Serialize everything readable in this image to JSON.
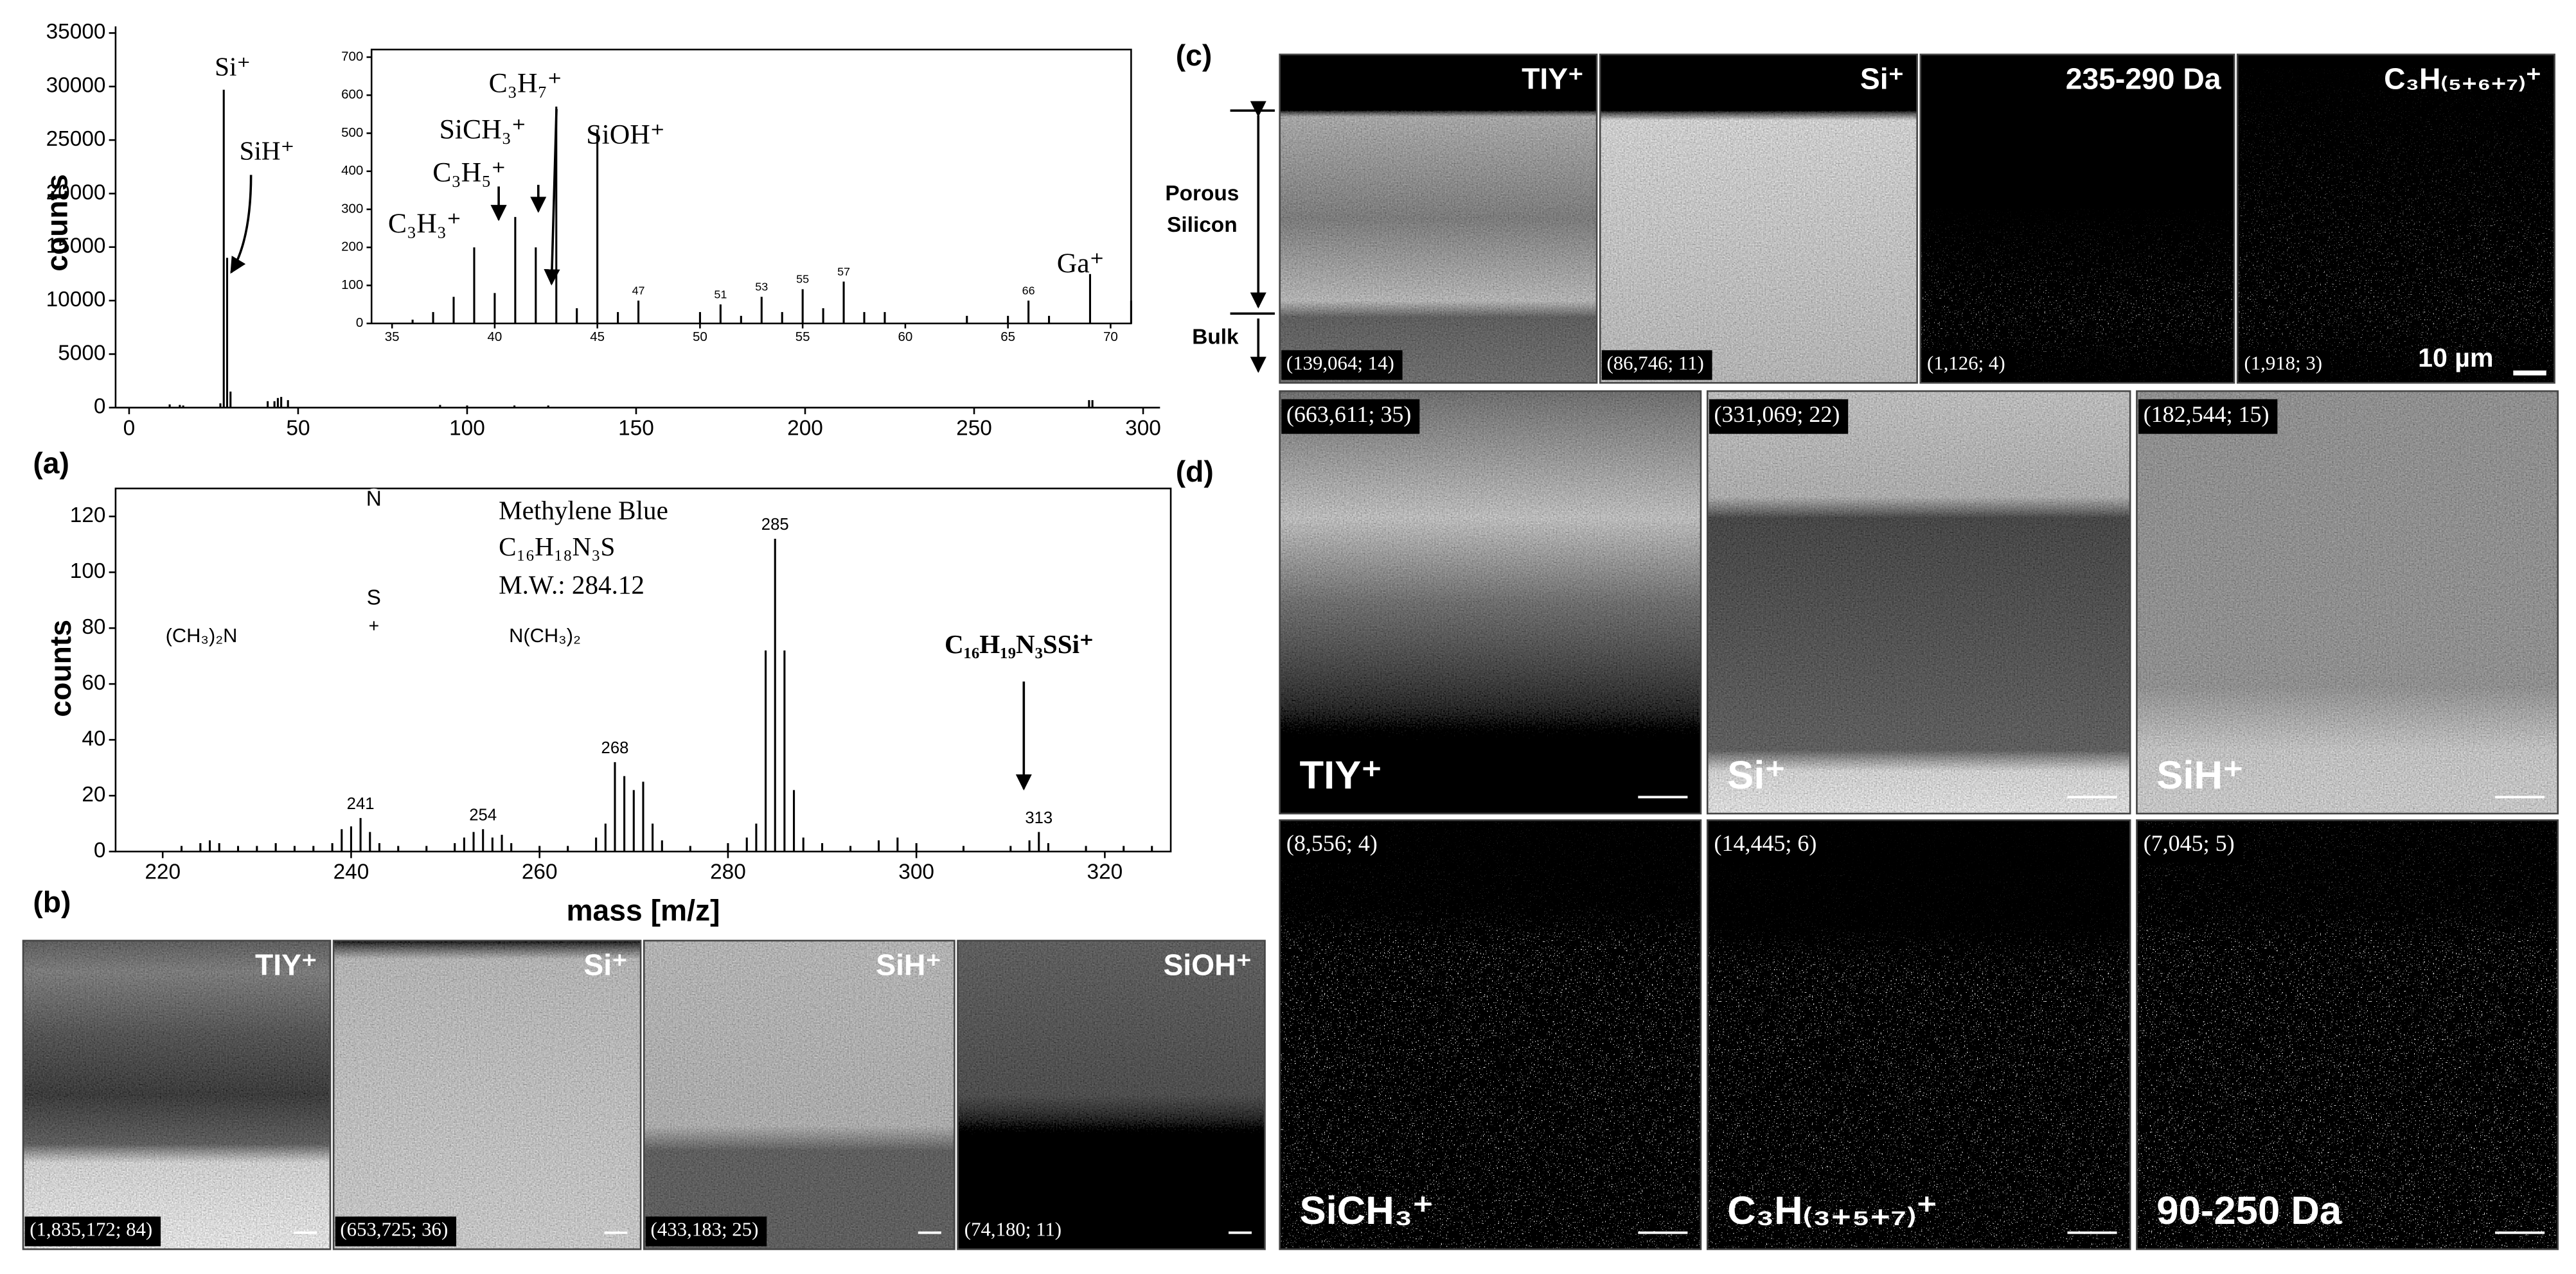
{
  "chart_data": [
    {
      "type": "stem",
      "y_label": "counts",
      "color": "#000000",
      "frame": false,
      "x": [
        12,
        15,
        16,
        27,
        28,
        29,
        30,
        41,
        43,
        44,
        45,
        47,
        92,
        100,
        114,
        124,
        284,
        285
      ],
      "values": [
        300,
        250,
        200,
        400,
        29700,
        14000,
        1500,
        600,
        600,
        900,
        1000,
        700,
        250,
        200,
        200,
        200,
        700,
        700
      ],
      "xlim": [
        -4,
        305
      ],
      "ylim": [
        0,
        35000
      ],
      "xticks": [
        0,
        50,
        100,
        150,
        200,
        250,
        300
      ],
      "yticks": [
        0,
        5000,
        10000,
        15000,
        20000,
        25000,
        30000,
        35000
      ],
      "annotations": [
        "Si⁺",
        "SiH⁺"
      ]
    },
    {
      "type": "stem",
      "color": "#000000",
      "frame": true,
      "x": [
        36,
        37,
        38,
        39,
        40,
        41,
        42,
        43,
        44,
        45,
        46,
        47,
        50,
        51,
        52,
        53,
        54,
        55,
        56,
        57,
        58,
        59,
        63,
        65,
        66,
        67,
        69,
        71
      ],
      "values": [
        10,
        30,
        70,
        200,
        80,
        280,
        200,
        570,
        40,
        510,
        30,
        60,
        30,
        50,
        20,
        70,
        30,
        90,
        40,
        110,
        30,
        30,
        20,
        20,
        60,
        20,
        130,
        60
      ],
      "xlim": [
        34,
        71
      ],
      "ylim": [
        0,
        720
      ],
      "xticks": [
        35,
        40,
        45,
        50,
        55,
        60,
        65,
        70
      ],
      "yticks": [
        0,
        100,
        200,
        300,
        400,
        500,
        600,
        700
      ],
      "labeled_peaks": [
        47,
        51,
        53,
        55,
        57,
        66
      ],
      "annotations": [
        "C₃H₃⁺",
        "C₃H₅⁺",
        "SiCH₃⁺",
        "C₃H₇⁺",
        "SiOH⁺",
        "Ga⁺"
      ]
    },
    {
      "type": "stem",
      "y_label": "counts",
      "x_label": "mass [m/z]",
      "color": "#000000",
      "frame": true,
      "x": [
        222,
        224,
        225,
        226,
        228,
        230,
        232,
        234,
        236,
        238,
        239,
        240,
        241,
        242,
        243,
        245,
        248,
        251,
        252,
        253,
        254,
        255,
        256,
        257,
        260,
        263,
        266,
        267,
        268,
        269,
        270,
        271,
        272,
        273,
        276,
        280,
        282,
        283,
        284,
        285,
        286,
        287,
        288,
        290,
        293,
        296,
        298,
        300,
        305,
        310,
        312,
        313,
        314,
        318,
        322,
        325
      ],
      "values": [
        2,
        3,
        4,
        3,
        2,
        2,
        3,
        2,
        2,
        3,
        8,
        9,
        12,
        7,
        3,
        2,
        2,
        3,
        5,
        7,
        8,
        5,
        6,
        3,
        2,
        2,
        5,
        10,
        32,
        27,
        22,
        25,
        10,
        4,
        2,
        3,
        5,
        10,
        72,
        112,
        72,
        22,
        5,
        3,
        2,
        4,
        5,
        3,
        2,
        2,
        4,
        7,
        3,
        2,
        2,
        2
      ],
      "xlim": [
        215,
        327
      ],
      "ylim": [
        0,
        130
      ],
      "xticks": [
        220,
        240,
        260,
        280,
        300,
        320
      ],
      "yticks": [
        0,
        20,
        40,
        60,
        80,
        100,
        120
      ],
      "labeled_peaks": [
        241,
        254,
        268,
        285,
        313
      ],
      "annotations": [
        "Methylene Blue",
        "C₁₆H₁₈N₃S",
        "M.W.: 284.12",
        "C₁₆H₁₉N₃SSi⁺"
      ],
      "structure_labels": [
        "N",
        "S",
        "+",
        "(CH₃)₂N",
        "N(CH₃)₂"
      ]
    }
  ],
  "panel_labels": [
    "(a)",
    "(b)",
    "(c)",
    "(d)"
  ],
  "panel_b": [
    {
      "label": "TIY⁺",
      "counts": "(1,835,172; 84)"
    },
    {
      "label": "Si⁺",
      "counts": "(653,725; 36)"
    },
    {
      "label": "SiH⁺",
      "counts": "(433,183; 25)"
    },
    {
      "label": "SiOH⁺",
      "counts": "(74,180; 11)"
    }
  ],
  "panel_c": {
    "images": [
      {
        "label": "TIY⁺",
        "counts": "(139,064; 14)"
      },
      {
        "label": "Si⁺",
        "counts": "(86,746; 11)"
      },
      {
        "label": "235-290 Da",
        "counts": "(1,126; 4)"
      },
      {
        "label": "C₃H₍₅₊₆₊₇₎⁺",
        "counts": "(1,918; 3)"
      }
    ],
    "scale_bar": "10 µm",
    "depth_labels": [
      "Porous",
      "Silicon",
      "Bulk"
    ]
  },
  "panel_d": [
    {
      "label": "TIY⁺",
      "counts": "(663,611; 35)"
    },
    {
      "label": "Si⁺",
      "counts": "(331,069; 22)"
    },
    {
      "label": "SiH⁺",
      "counts": "(182,544; 15)"
    },
    {
      "label": "SiCH₃⁺",
      "counts": "(8,556; 4)"
    },
    {
      "label": "C₃H₍₃₊₅₊₇₎⁺",
      "counts": "(14,445; 6)"
    },
    {
      "label": "90-250 Da",
      "counts": "(7,045; 5)"
    }
  ]
}
